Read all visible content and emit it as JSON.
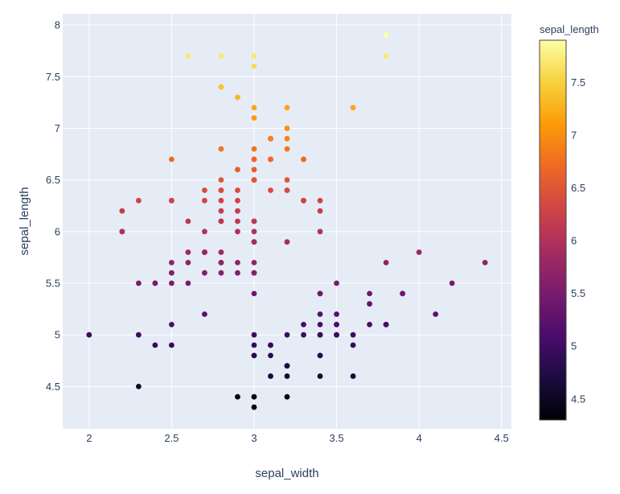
{
  "chart_data": {
    "type": "scatter",
    "xlabel": "sepal_width",
    "ylabel": "sepal_length",
    "xlim": [
      1.84,
      4.56
    ],
    "ylim": [
      4.09,
      8.11
    ],
    "xticks": [
      "2",
      "2.5",
      "3",
      "3.5",
      "4",
      "4.5"
    ],
    "yticks": [
      "4.5",
      "5",
      "5.5",
      "6",
      "6.5",
      "7",
      "7.5",
      "8"
    ],
    "colorbar": {
      "title": "sepal_length",
      "range": [
        4.3,
        7.9
      ],
      "colorscale": "Inferno",
      "ticks": [
        "4.5",
        "5",
        "5.5",
        "6",
        "6.5",
        "7",
        "7.5"
      ]
    },
    "grid": true,
    "points": [
      [
        3.5,
        5.1
      ],
      [
        3.0,
        4.9
      ],
      [
        3.2,
        4.7
      ],
      [
        3.1,
        4.6
      ],
      [
        3.6,
        5.0
      ],
      [
        3.9,
        5.4
      ],
      [
        3.4,
        4.6
      ],
      [
        3.4,
        5.0
      ],
      [
        2.9,
        4.4
      ],
      [
        3.1,
        4.9
      ],
      [
        3.7,
        5.4
      ],
      [
        3.4,
        4.8
      ],
      [
        3.0,
        4.8
      ],
      [
        3.0,
        4.3
      ],
      [
        4.0,
        5.8
      ],
      [
        4.4,
        5.7
      ],
      [
        3.9,
        5.4
      ],
      [
        3.5,
        5.1
      ],
      [
        3.8,
        5.7
      ],
      [
        3.8,
        5.1
      ],
      [
        3.4,
        5.4
      ],
      [
        3.7,
        5.1
      ],
      [
        3.6,
        4.6
      ],
      [
        3.3,
        5.1
      ],
      [
        3.4,
        4.8
      ],
      [
        3.0,
        5.0
      ],
      [
        3.4,
        5.0
      ],
      [
        3.5,
        5.2
      ],
      [
        3.4,
        5.2
      ],
      [
        3.2,
        4.7
      ],
      [
        3.1,
        4.8
      ],
      [
        3.4,
        5.4
      ],
      [
        4.1,
        5.2
      ],
      [
        4.2,
        5.5
      ],
      [
        3.1,
        4.9
      ],
      [
        3.2,
        5.0
      ],
      [
        3.5,
        5.5
      ],
      [
        3.6,
        4.9
      ],
      [
        3.0,
        4.4
      ],
      [
        3.4,
        5.1
      ],
      [
        3.5,
        5.0
      ],
      [
        2.3,
        4.5
      ],
      [
        3.2,
        4.4
      ],
      [
        3.5,
        5.0
      ],
      [
        3.8,
        5.1
      ],
      [
        3.0,
        4.8
      ],
      [
        3.8,
        5.1
      ],
      [
        3.2,
        4.6
      ],
      [
        3.7,
        5.3
      ],
      [
        3.3,
        5.0
      ],
      [
        3.2,
        7.0
      ],
      [
        3.2,
        6.4
      ],
      [
        3.1,
        6.9
      ],
      [
        2.3,
        5.5
      ],
      [
        2.8,
        6.5
      ],
      [
        2.8,
        5.7
      ],
      [
        3.3,
        6.3
      ],
      [
        2.4,
        4.9
      ],
      [
        2.9,
        6.6
      ],
      [
        2.7,
        5.2
      ],
      [
        2.0,
        5.0
      ],
      [
        3.0,
        5.9
      ],
      [
        2.2,
        6.0
      ],
      [
        2.9,
        6.1
      ],
      [
        2.9,
        5.6
      ],
      [
        3.1,
        6.7
      ],
      [
        3.0,
        5.6
      ],
      [
        2.7,
        5.8
      ],
      [
        2.2,
        6.2
      ],
      [
        2.5,
        5.6
      ],
      [
        3.2,
        5.9
      ],
      [
        2.8,
        6.1
      ],
      [
        2.5,
        6.3
      ],
      [
        2.8,
        6.1
      ],
      [
        2.9,
        6.4
      ],
      [
        3.0,
        6.6
      ],
      [
        2.8,
        6.8
      ],
      [
        3.0,
        6.7
      ],
      [
        2.9,
        6.0
      ],
      [
        2.6,
        5.7
      ],
      [
        2.4,
        5.5
      ],
      [
        2.4,
        5.5
      ],
      [
        2.7,
        5.8
      ],
      [
        2.7,
        6.0
      ],
      [
        3.0,
        5.4
      ],
      [
        3.4,
        6.0
      ],
      [
        3.1,
        6.7
      ],
      [
        2.3,
        6.3
      ],
      [
        3.0,
        5.6
      ],
      [
        2.5,
        5.5
      ],
      [
        2.6,
        5.5
      ],
      [
        3.0,
        6.1
      ],
      [
        2.6,
        5.8
      ],
      [
        2.3,
        5.0
      ],
      [
        2.7,
        5.6
      ],
      [
        3.0,
        5.7
      ],
      [
        2.9,
        5.7
      ],
      [
        2.9,
        6.2
      ],
      [
        2.5,
        5.1
      ],
      [
        2.8,
        5.7
      ],
      [
        3.3,
        6.3
      ],
      [
        2.7,
        5.8
      ],
      [
        3.0,
        7.1
      ],
      [
        2.9,
        6.3
      ],
      [
        3.0,
        6.5
      ],
      [
        3.0,
        7.6
      ],
      [
        2.5,
        4.9
      ],
      [
        2.9,
        7.3
      ],
      [
        2.5,
        6.7
      ],
      [
        3.6,
        7.2
      ],
      [
        3.2,
        6.5
      ],
      [
        2.7,
        6.4
      ],
      [
        3.0,
        6.8
      ],
      [
        2.5,
        5.7
      ],
      [
        2.8,
        5.8
      ],
      [
        3.2,
        6.4
      ],
      [
        3.0,
        6.5
      ],
      [
        3.8,
        7.7
      ],
      [
        2.6,
        7.7
      ],
      [
        2.2,
        6.0
      ],
      [
        3.2,
        6.9
      ],
      [
        2.8,
        5.6
      ],
      [
        2.8,
        7.7
      ],
      [
        2.7,
        6.3
      ],
      [
        3.3,
        6.7
      ],
      [
        3.2,
        7.2
      ],
      [
        2.8,
        6.2
      ],
      [
        3.0,
        6.1
      ],
      [
        2.8,
        6.4
      ],
      [
        3.0,
        7.2
      ],
      [
        2.8,
        7.4
      ],
      [
        3.8,
        7.9
      ],
      [
        2.8,
        6.4
      ],
      [
        2.8,
        6.3
      ],
      [
        2.6,
        6.1
      ],
      [
        3.0,
        7.7
      ],
      [
        3.4,
        6.3
      ],
      [
        3.1,
        6.4
      ],
      [
        3.0,
        6.0
      ],
      [
        3.1,
        6.9
      ],
      [
        3.1,
        6.7
      ],
      [
        3.1,
        6.9
      ],
      [
        2.7,
        5.8
      ],
      [
        3.2,
        6.8
      ],
      [
        3.3,
        6.7
      ],
      [
        3.0,
        6.7
      ],
      [
        2.5,
        6.3
      ],
      [
        3.0,
        6.5
      ],
      [
        3.4,
        6.2
      ],
      [
        3.0,
        5.9
      ]
    ]
  }
}
